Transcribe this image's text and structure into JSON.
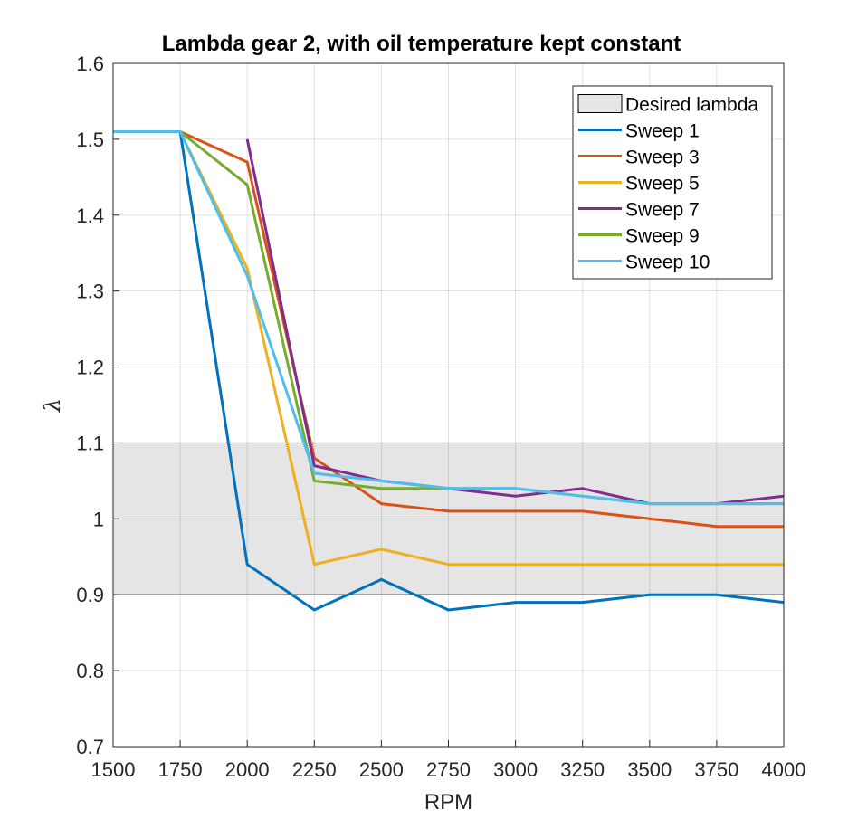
{
  "chart_data": {
    "type": "line",
    "title": "Lambda gear 2, with oil temperature kept constant",
    "xlabel": "RPM",
    "ylabel": "λ",
    "xlim": [
      1500,
      4000
    ],
    "ylim": [
      0.7,
      1.6
    ],
    "x_ticks": [
      "1500",
      "1750",
      "2000",
      "2250",
      "2500",
      "2750",
      "3000",
      "3250",
      "3500",
      "3750",
      "4000"
    ],
    "y_ticks": [
      "0.7",
      "0.8",
      "0.9",
      "1",
      "1.1",
      "1.2",
      "1.3",
      "1.4",
      "1.5",
      "1.6"
    ],
    "grid": true,
    "legend_location": "top-right",
    "band": {
      "name": "Desired lambda",
      "y_range": [
        0.9,
        1.1
      ],
      "color": "#e5e5e5"
    },
    "series": [
      {
        "name": "Sweep 1",
        "color": "#0072bd",
        "x": [
          1500,
          1750,
          2000,
          2250,
          2500,
          2750,
          3000,
          3250,
          3500,
          3750,
          4000
        ],
        "values": [
          1.51,
          1.51,
          0.94,
          0.88,
          0.92,
          0.88,
          0.89,
          0.89,
          0.9,
          0.9,
          0.89
        ]
      },
      {
        "name": "Sweep 3",
        "color": "#d95319",
        "x": [
          1500,
          1750,
          2000,
          2250,
          2500,
          2750,
          3000,
          3250,
          3500,
          3750,
          4000
        ],
        "values": [
          1.51,
          1.51,
          1.47,
          1.08,
          1.02,
          1.01,
          1.01,
          1.01,
          1.0,
          0.99,
          0.99
        ]
      },
      {
        "name": "Sweep 5",
        "color": "#edb120",
        "x": [
          1500,
          1750,
          2000,
          2250,
          2500,
          2750,
          3000,
          3250,
          3500,
          3750,
          4000
        ],
        "values": [
          1.51,
          1.51,
          1.33,
          0.94,
          0.96,
          0.94,
          0.94,
          0.94,
          0.94,
          0.94,
          0.94
        ]
      },
      {
        "name": "Sweep 7",
        "color": "#7e2f8e",
        "x": [
          2000,
          2250,
          2500,
          2750,
          3000,
          3250,
          3500,
          3750,
          4000
        ],
        "values": [
          1.5,
          1.07,
          1.05,
          1.04,
          1.03,
          1.04,
          1.02,
          1.02,
          1.03
        ]
      },
      {
        "name": "Sweep 9",
        "color": "#77ac30",
        "x": [
          1500,
          1750,
          2000,
          2250,
          2500,
          2750,
          3000,
          3250,
          3500,
          3750,
          4000
        ],
        "values": [
          1.51,
          1.51,
          1.44,
          1.05,
          1.04,
          1.04,
          1.04,
          1.03,
          1.02,
          1.02,
          1.02
        ]
      },
      {
        "name": "Sweep 10",
        "color": "#4dbeee",
        "x": [
          1500,
          1750,
          2000,
          2250,
          2500,
          2750,
          3000,
          3250,
          3500,
          3750,
          4000
        ],
        "values": [
          1.51,
          1.51,
          1.32,
          1.06,
          1.05,
          1.04,
          1.04,
          1.03,
          1.02,
          1.02,
          1.02
        ]
      }
    ]
  }
}
